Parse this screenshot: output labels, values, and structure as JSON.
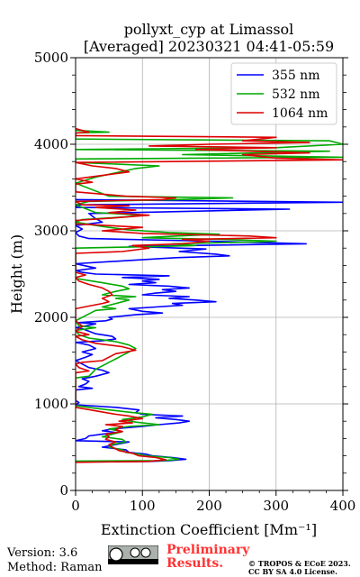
{
  "chart_data": {
    "type": "line",
    "title_line1": "pollyxt_cyp at Limassol",
    "title_line2": "[Averaged] 20230321 04:41-05:59",
    "xlabel": "Extinction Coefficient [Mm⁻¹]",
    "ylabel": "Height (m)",
    "xlim": [
      0,
      400
    ],
    "ylim": [
      0,
      5000
    ],
    "x_ticks": [
      0,
      100,
      200,
      300,
      400
    ],
    "y_ticks": [
      0,
      1000,
      2000,
      3000,
      4000,
      5000
    ],
    "grid": true,
    "legend_position": "top-right",
    "series": [
      {
        "name": "355 nm",
        "color": "#0000ff",
        "points": [
          [
            0,
            330
          ],
          [
            110,
            335
          ],
          [
            140,
            345
          ],
          [
            165,
            360
          ],
          [
            145,
            380
          ],
          [
            115,
            400
          ],
          [
            105,
            420
          ],
          [
            80,
            440
          ],
          [
            75,
            470
          ],
          [
            40,
            500
          ],
          [
            60,
            530
          ],
          [
            80,
            560
          ],
          [
            0,
            575
          ],
          [
            15,
            600
          ],
          [
            20,
            630
          ],
          [
            40,
            650
          ],
          [
            60,
            670
          ],
          [
            40,
            690
          ],
          [
            55,
            710
          ],
          [
            100,
            740
          ],
          [
            125,
            760
          ],
          [
            155,
            780
          ],
          [
            170,
            800
          ],
          [
            150,
            820
          ],
          [
            120,
            840
          ],
          [
            160,
            860
          ],
          [
            100,
            880
          ],
          [
            90,
            900
          ],
          [
            95,
            930
          ],
          [
            60,
            960
          ],
          [
            0,
            990
          ],
          [
            5,
            1015
          ],
          [
            0,
            1040
          ],
          [
            0,
            1160
          ],
          [
            25,
            1180
          ],
          [
            5,
            1200
          ],
          [
            15,
            1230
          ],
          [
            20,
            1260
          ],
          [
            10,
            1290
          ],
          [
            30,
            1320
          ],
          [
            50,
            1360
          ],
          [
            40,
            1390
          ],
          [
            20,
            1420
          ],
          [
            10,
            1460
          ],
          [
            0,
            1500
          ],
          [
            15,
            1540
          ],
          [
            25,
            1570
          ],
          [
            10,
            1600
          ],
          [
            30,
            1640
          ],
          [
            20,
            1680
          ],
          [
            0,
            1710
          ],
          [
            40,
            1730
          ],
          [
            60,
            1750
          ],
          [
            55,
            1780
          ],
          [
            30,
            1810
          ],
          [
            20,
            1840
          ],
          [
            10,
            1870
          ],
          [
            0,
            1880
          ],
          [
            15,
            1900
          ],
          [
            30,
            1925
          ],
          [
            5,
            1940
          ],
          [
            45,
            1960
          ],
          [
            55,
            1980
          ],
          [
            50,
            2000
          ],
          [
            90,
            2030
          ],
          [
            130,
            2050
          ],
          [
            100,
            2070
          ],
          [
            80,
            2100
          ],
          [
            120,
            2120
          ],
          [
            160,
            2140
          ],
          [
            145,
            2160
          ],
          [
            210,
            2180
          ],
          [
            180,
            2200
          ],
          [
            140,
            2220
          ],
          [
            170,
            2240
          ],
          [
            100,
            2260
          ],
          [
            120,
            2280
          ],
          [
            150,
            2300
          ],
          [
            130,
            2320
          ],
          [
            170,
            2340
          ],
          [
            140,
            2360
          ],
          [
            80,
            2380
          ],
          [
            120,
            2400
          ],
          [
            100,
            2420
          ],
          [
            125,
            2440
          ],
          [
            70,
            2460
          ],
          [
            140,
            2480
          ],
          [
            30,
            2500
          ],
          [
            10,
            2520
          ],
          [
            0,
            2540
          ],
          [
            30,
            2570
          ],
          [
            0,
            2620
          ],
          [
            150,
            2690
          ],
          [
            230,
            2710
          ],
          [
            210,
            2730
          ],
          [
            155,
            2760
          ],
          [
            195,
            2790
          ],
          [
            80,
            2820
          ],
          [
            345,
            2850
          ],
          [
            200,
            2880
          ],
          [
            20,
            2910
          ],
          [
            5,
            2940
          ],
          [
            0,
            2980
          ],
          [
            10,
            3020
          ],
          [
            0,
            3060
          ],
          [
            40,
            3100
          ],
          [
            30,
            3140
          ],
          [
            20,
            3200
          ],
          [
            320,
            3250
          ],
          [
            0,
            3270
          ],
          [
            5,
            3300
          ],
          [
            400,
            3330
          ],
          [
            0,
            3360
          ]
        ]
      },
      {
        "name": "532 nm",
        "color": "#00aa00",
        "points": [
          [
            0,
            340
          ],
          [
            130,
            345
          ],
          [
            155,
            360
          ],
          [
            140,
            380
          ],
          [
            105,
            400
          ],
          [
            95,
            420
          ],
          [
            75,
            440
          ],
          [
            70,
            470
          ],
          [
            50,
            500
          ],
          [
            55,
            530
          ],
          [
            75,
            560
          ],
          [
            70,
            590
          ],
          [
            40,
            620
          ],
          [
            55,
            650
          ],
          [
            70,
            680
          ],
          [
            50,
            710
          ],
          [
            80,
            740
          ],
          [
            125,
            760
          ],
          [
            90,
            790
          ],
          [
            70,
            820
          ],
          [
            100,
            850
          ],
          [
            115,
            880
          ],
          [
            85,
            900
          ],
          [
            40,
            940
          ],
          [
            0,
            980
          ],
          [
            0,
            1300
          ],
          [
            20,
            1320
          ],
          [
            25,
            1360
          ],
          [
            30,
            1400
          ],
          [
            40,
            1440
          ],
          [
            50,
            1480
          ],
          [
            60,
            1520
          ],
          [
            70,
            1560
          ],
          [
            80,
            1600
          ],
          [
            90,
            1640
          ],
          [
            80,
            1680
          ],
          [
            60,
            1720
          ],
          [
            20,
            1760
          ],
          [
            5,
            1800
          ],
          [
            0,
            1850
          ],
          [
            30,
            1880
          ],
          [
            5,
            1900
          ],
          [
            0,
            1960
          ],
          [
            30,
            2080
          ],
          [
            60,
            2100
          ],
          [
            40,
            2120
          ],
          [
            80,
            2200
          ],
          [
            60,
            2220
          ],
          [
            90,
            2240
          ],
          [
            40,
            2260
          ],
          [
            60,
            2300
          ],
          [
            80,
            2330
          ],
          [
            70,
            2360
          ],
          [
            40,
            2400
          ],
          [
            0,
            2450
          ],
          [
            0,
            2800
          ],
          [
            130,
            2820
          ],
          [
            180,
            2830
          ],
          [
            145,
            2850
          ],
          [
            260,
            2870
          ],
          [
            300,
            2880
          ],
          [
            220,
            2900
          ],
          [
            100,
            2920
          ],
          [
            150,
            2940
          ],
          [
            215,
            2960
          ],
          [
            140,
            2980
          ],
          [
            80,
            3010
          ],
          [
            40,
            3050
          ],
          [
            0,
            3100
          ],
          [
            10,
            3130
          ],
          [
            75,
            3160
          ],
          [
            100,
            3180
          ],
          [
            30,
            3210
          ],
          [
            0,
            3300
          ],
          [
            20,
            3340
          ],
          [
            150,
            3360
          ],
          [
            235,
            3380
          ],
          [
            50,
            3400
          ],
          [
            0,
            3550
          ],
          [
            30,
            3620
          ],
          [
            90,
            3720
          ],
          [
            125,
            3750
          ],
          [
            0,
            3790
          ],
          [
            0,
            3830
          ],
          [
            400,
            3850
          ],
          [
            160,
            3880
          ],
          [
            380,
            3920
          ],
          [
            0,
            3940
          ],
          [
            300,
            3960
          ],
          [
            400,
            4000
          ],
          [
            380,
            4040
          ],
          [
            0,
            4060
          ],
          [
            0,
            4130
          ],
          [
            50,
            4140
          ],
          [
            0,
            4160
          ]
        ]
      },
      {
        "name": "1064 nm",
        "color": "#dd0000",
        "points": [
          [
            0,
            325
          ],
          [
            110,
            335
          ],
          [
            135,
            355
          ],
          [
            120,
            380
          ],
          [
            95,
            400
          ],
          [
            85,
            430
          ],
          [
            65,
            460
          ],
          [
            55,
            500
          ],
          [
            50,
            530
          ],
          [
            60,
            560
          ],
          [
            45,
            590
          ],
          [
            50,
            620
          ],
          [
            45,
            650
          ],
          [
            70,
            680
          ],
          [
            60,
            700
          ],
          [
            70,
            740
          ],
          [
            45,
            760
          ],
          [
            85,
            780
          ],
          [
            65,
            800
          ],
          [
            100,
            830
          ],
          [
            80,
            860
          ],
          [
            60,
            880
          ],
          [
            30,
            920
          ],
          [
            0,
            960
          ],
          [
            0,
            1360
          ],
          [
            20,
            1380
          ],
          [
            5,
            1420
          ],
          [
            0,
            1460
          ],
          [
            10,
            1480
          ],
          [
            40,
            1500
          ],
          [
            50,
            1540
          ],
          [
            60,
            1580
          ],
          [
            90,
            1620
          ],
          [
            70,
            1660
          ],
          [
            30,
            1700
          ],
          [
            10,
            1740
          ],
          [
            0,
            1780
          ],
          [
            20,
            1800
          ],
          [
            0,
            1840
          ],
          [
            10,
            1900
          ],
          [
            0,
            1960
          ],
          [
            0,
            2100
          ],
          [
            20,
            2130
          ],
          [
            40,
            2160
          ],
          [
            50,
            2180
          ],
          [
            40,
            2220
          ],
          [
            55,
            2260
          ],
          [
            50,
            2300
          ],
          [
            40,
            2340
          ],
          [
            20,
            2380
          ],
          [
            5,
            2420
          ],
          [
            0,
            2460
          ],
          [
            15,
            2490
          ],
          [
            0,
            2520
          ],
          [
            0,
            2740
          ],
          [
            70,
            2760
          ],
          [
            110,
            2800
          ],
          [
            85,
            2830
          ],
          [
            160,
            2850
          ],
          [
            200,
            2880
          ],
          [
            160,
            2900
          ],
          [
            300,
            2920
          ],
          [
            260,
            2940
          ],
          [
            100,
            2970
          ],
          [
            40,
            3000
          ],
          [
            100,
            3040
          ],
          [
            0,
            3080
          ],
          [
            0,
            3120
          ],
          [
            60,
            3150
          ],
          [
            110,
            3180
          ],
          [
            50,
            3210
          ],
          [
            90,
            3240
          ],
          [
            30,
            3270
          ],
          [
            80,
            3290
          ],
          [
            10,
            3300
          ],
          [
            0,
            3340
          ],
          [
            130,
            3360
          ],
          [
            150,
            3380
          ],
          [
            75,
            3400
          ],
          [
            0,
            3450
          ],
          [
            0,
            3540
          ],
          [
            25,
            3560
          ],
          [
            0,
            3600
          ],
          [
            40,
            3640
          ],
          [
            80,
            3680
          ],
          [
            60,
            3720
          ],
          [
            25,
            3750
          ],
          [
            0,
            3790
          ],
          [
            400,
            3820
          ],
          [
            300,
            3840
          ],
          [
            250,
            3880
          ],
          [
            350,
            3900
          ],
          [
            180,
            3940
          ],
          [
            300,
            3960
          ],
          [
            110,
            3980
          ],
          [
            200,
            4000
          ],
          [
            350,
            4020
          ],
          [
            250,
            4040
          ],
          [
            300,
            4080
          ],
          [
            0,
            4100
          ],
          [
            0,
            4130
          ],
          [
            20,
            4140
          ],
          [
            10,
            4160
          ],
          [
            0,
            4180
          ]
        ]
      }
    ]
  },
  "footer": {
    "version": "Version: 3.6",
    "method": "Method: Raman",
    "preliminary_line1": "Preliminary",
    "preliminary_line2": "Results.",
    "copyright_line1": "© TROPOS & ECoE 2023.",
    "copyright_line2": "CC BY SA 4.0 License."
  }
}
